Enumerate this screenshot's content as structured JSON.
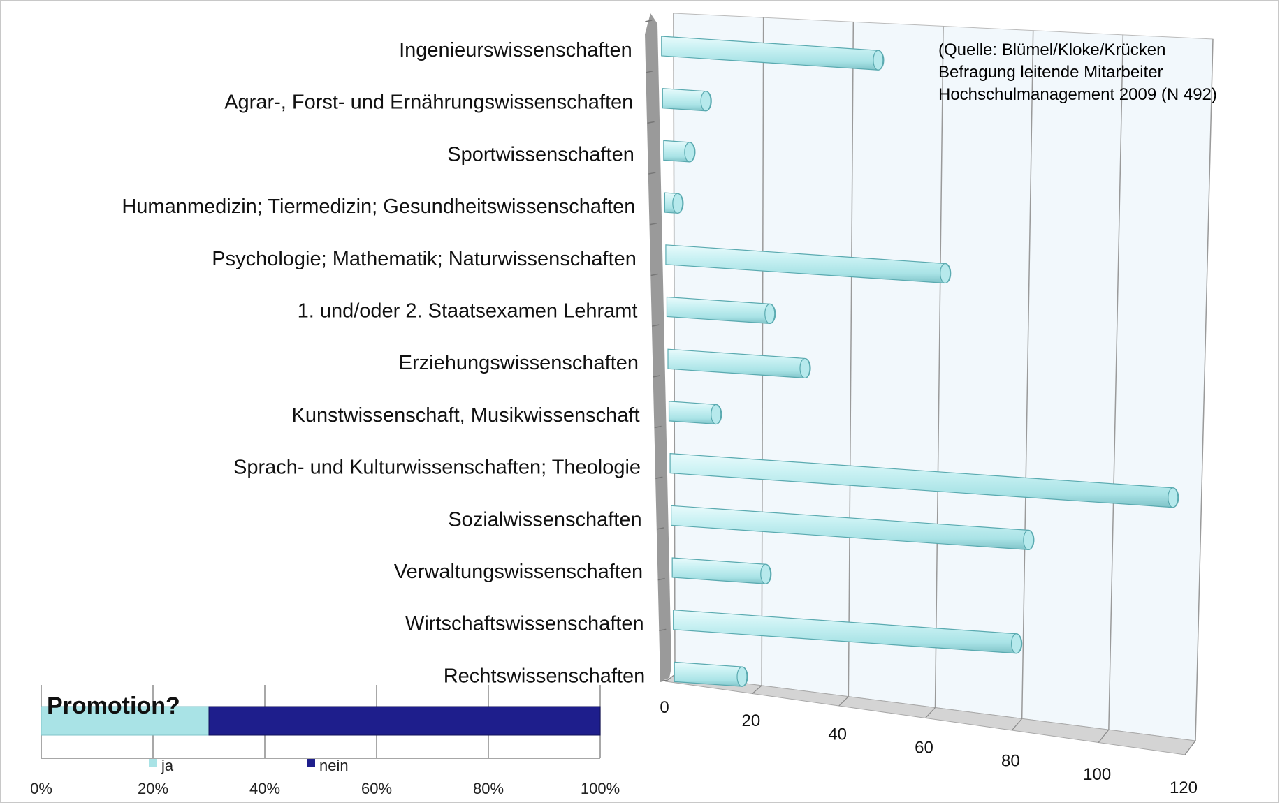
{
  "chart_data": [
    {
      "type": "bar",
      "orientation": "horizontal",
      "style": "3d-cylinder",
      "categories": [
        "Ingenieurswissenschaften",
        "Agrar-, Forst- und Ernährungswissenschaften",
        "Sportwissenschaften",
        "Humanmedizin; Tiermedizin; Gesundheitswissenschaften",
        "Psychologie; Mathematik; Naturwissenschaften",
        "1. und/oder 2. Staatsexamen Lehramt",
        "Erziehungswissenschaften",
        "Kunstwissenschaft, Musikwissenschaft",
        "Sprach- und Kulturwissenschaften; Theologie",
        "Sozialwissenschaften",
        "Verwaltungswissenschaften",
        "Wirtschaftswissenschaften",
        "Rechtswissenschaften"
      ],
      "values": [
        50,
        10,
        6,
        3,
        65,
        24,
        32,
        11,
        118,
        84,
        22,
        81,
        16
      ],
      "xlim": [
        0,
        120
      ],
      "xticks": [
        "0",
        "20",
        "40",
        "60",
        "80",
        "100",
        "120"
      ],
      "grid": true,
      "annotation": [
        "(Quelle: Blümel/Kloke/Krücken",
        "Befragung leitende Mitarbeiter",
        "Hochschulmanagement 2009 (N 492)"
      ],
      "colors": {
        "bar": "#a9e3e6",
        "bar_edge": "#5aaab0",
        "wall": "#f2f8fc",
        "side_wall": "#9a9a9a",
        "floor": "#d4d4d4"
      }
    },
    {
      "type": "bar",
      "orientation": "horizontal",
      "stacked": true,
      "title": "Promotion?",
      "series": [
        {
          "name": "ja",
          "values": [
            30
          ],
          "color": "#a9e3e6"
        },
        {
          "name": "nein",
          "values": [
            70
          ],
          "color": "#1e1e8c"
        }
      ],
      "xlim": [
        0,
        100
      ],
      "xticks": [
        "0%",
        "20%",
        "40%",
        "60%",
        "80%",
        "100%"
      ],
      "legend": "bottom"
    }
  ]
}
